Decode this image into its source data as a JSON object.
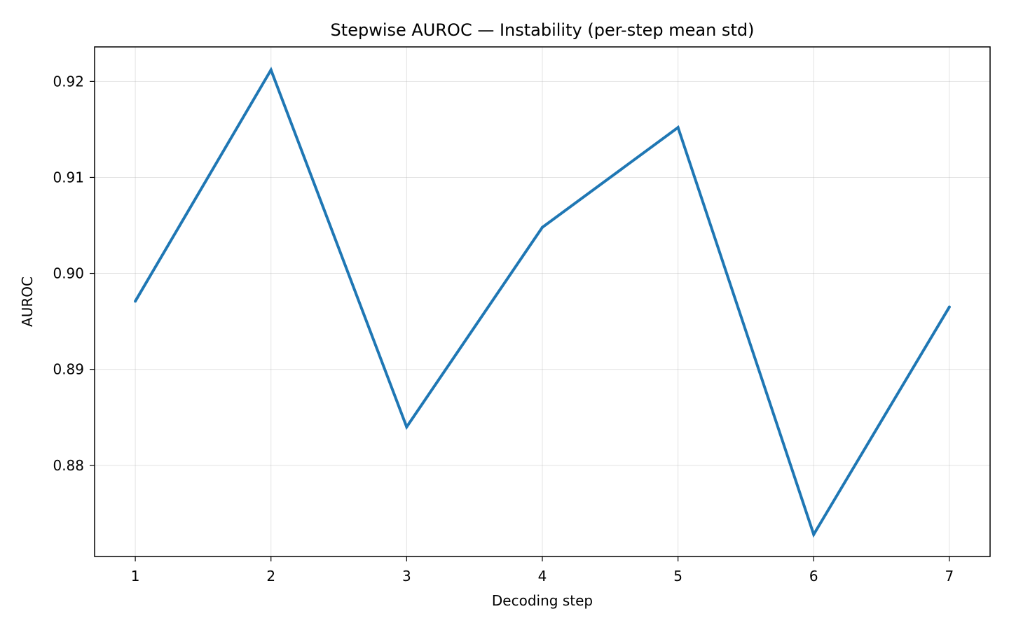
{
  "chart_data": {
    "type": "line",
    "title": "Stepwise AUROC — Instability (per-step mean std)",
    "xlabel": "Decoding step",
    "ylabel": "AUROC",
    "x": [
      1,
      2,
      3,
      4,
      5,
      6,
      7
    ],
    "x_tick_labels": [
      "1",
      "2",
      "3",
      "4",
      "5",
      "6",
      "7"
    ],
    "y_ticks": [
      0.88,
      0.89,
      0.9,
      0.91,
      0.92
    ],
    "y_tick_labels": [
      "0.88",
      "0.89",
      "0.90",
      "0.91",
      "0.92"
    ],
    "xlim": [
      0.7,
      7.3
    ],
    "ylim": [
      0.8705,
      0.9236
    ],
    "grid": true,
    "series": [
      {
        "values": [
          0.8971,
          0.9212,
          0.884,
          0.9048,
          0.9152,
          0.8728,
          0.8965
        ],
        "color": "#1f77b4"
      }
    ]
  }
}
